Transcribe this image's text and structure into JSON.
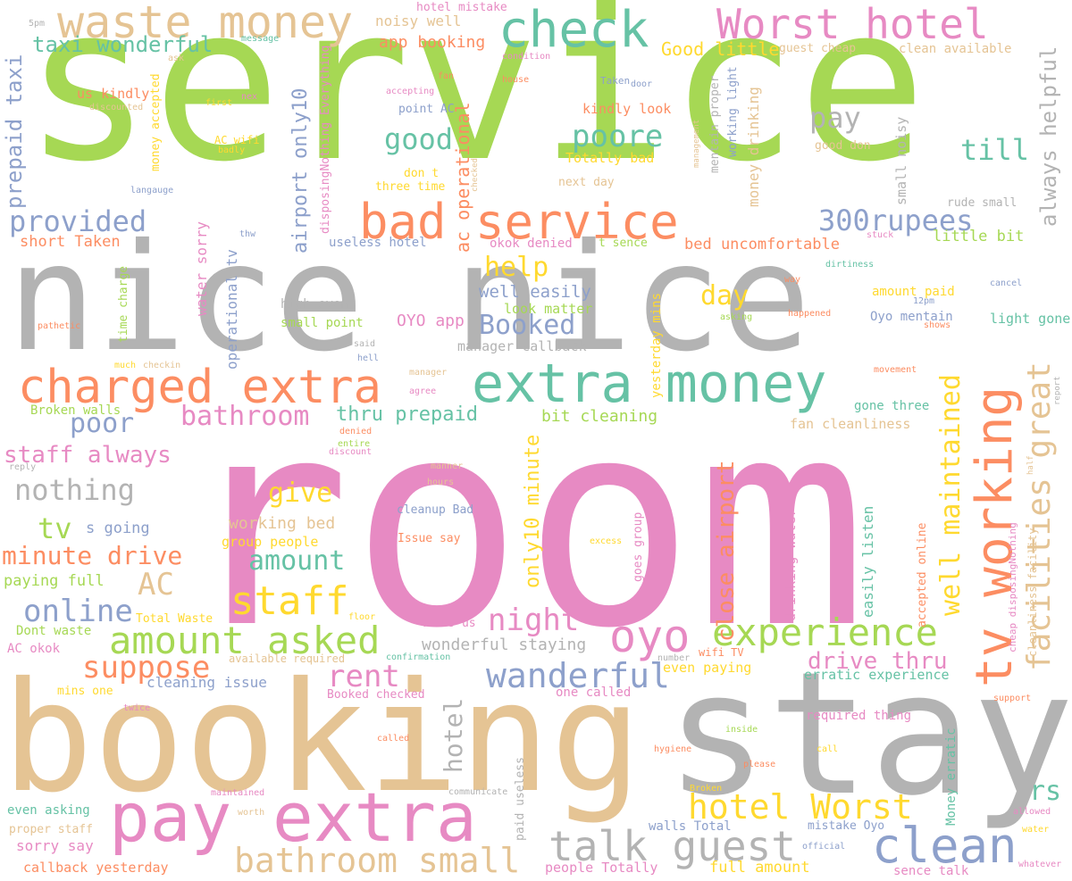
{
  "palette": {
    "green": "#a6d854",
    "gray": "#b3b3b3",
    "pink": "#e78ac3",
    "tan": "#e5c494",
    "teal": "#66c2a5",
    "orange": "#fc8d62",
    "blue": "#8da0cb",
    "yellow": "#ffd92f"
  },
  "words": [
    {
      "text": "service",
      "color": "#a6d854"
    },
    {
      "text": "nice nice",
      "color": "#b3b3b3"
    },
    {
      "text": "room",
      "color": "#e78ac3"
    },
    {
      "text": "booking",
      "color": "#e5c494"
    },
    {
      "text": "stay",
      "color": "#b3b3b3"
    },
    {
      "text": "waste money",
      "color": "#e5c494"
    },
    {
      "text": "check",
      "color": "#66c2a5"
    },
    {
      "text": "Worst hotel",
      "color": "#e78ac3"
    },
    {
      "text": "bad service",
      "color": "#fc8d62"
    },
    {
      "text": "charged extra",
      "color": "#fc8d62"
    },
    {
      "text": "extra money",
      "color": "#66c2a5"
    },
    {
      "text": "pay extra",
      "color": "#e78ac3"
    },
    {
      "text": "talk guest",
      "color": "#b3b3b3"
    },
    {
      "text": "clean",
      "color": "#8da0cb"
    },
    {
      "text": "bathroom small",
      "color": "#e5c494"
    },
    {
      "text": "amount asked",
      "color": "#a6d854"
    },
    {
      "text": "oyo",
      "color": "#e78ac3"
    },
    {
      "text": "experience",
      "color": "#a6d854"
    },
    {
      "text": "tv working",
      "color": "#fc8d62"
    },
    {
      "text": "facilities great",
      "color": "#e5c494"
    },
    {
      "text": "well maintained",
      "color": "#ffd92f"
    },
    {
      "text": "staff",
      "color": "#ffd92f"
    },
    {
      "text": "hotel Worst",
      "color": "#ffd92f"
    },
    {
      "text": "wanderful",
      "color": "#8da0cb"
    },
    {
      "text": "rent",
      "color": "#e78ac3"
    },
    {
      "text": "suppose",
      "color": "#fc8d62"
    },
    {
      "text": "online",
      "color": "#8da0cb"
    },
    {
      "text": "AC",
      "color": "#e5c494"
    },
    {
      "text": "night",
      "color": "#e78ac3"
    },
    {
      "text": "provided",
      "color": "#8da0cb"
    },
    {
      "text": "300rupees",
      "color": "#8da0cb"
    },
    {
      "text": "poore",
      "color": "#66c2a5"
    },
    {
      "text": "good",
      "color": "#66c2a5"
    },
    {
      "text": "pay",
      "color": "#b3b3b3"
    },
    {
      "text": "till",
      "color": "#66c2a5"
    },
    {
      "text": "help",
      "color": "#ffd92f"
    },
    {
      "text": "Booked",
      "color": "#8da0cb"
    },
    {
      "text": "day",
      "color": "#ffd92f"
    },
    {
      "text": "bathroom",
      "color": "#e78ac3"
    },
    {
      "text": "poor",
      "color": "#8da0cb"
    },
    {
      "text": "thru prepaid",
      "color": "#66c2a5"
    },
    {
      "text": "staff always",
      "color": "#e78ac3"
    },
    {
      "text": "nothing",
      "color": "#b3b3b3"
    },
    {
      "text": "give",
      "color": "#ffd92f"
    },
    {
      "text": "amount",
      "color": "#66c2a5"
    },
    {
      "text": "tv",
      "color": "#a6d854"
    },
    {
      "text": "minute drive",
      "color": "#fc8d62"
    },
    {
      "text": "drive thru",
      "color": "#e78ac3"
    },
    {
      "text": "rs",
      "color": "#66c2a5"
    },
    {
      "text": "always helpful",
      "color": "#b3b3b3"
    },
    {
      "text": "taxi wonderful",
      "color": "#66c2a5"
    },
    {
      "text": "prepaid taxi",
      "color": "#8da0cb"
    },
    {
      "text": "airport only10",
      "color": "#8da0cb"
    },
    {
      "text": "ac operational",
      "color": "#fc8d62"
    },
    {
      "text": "close airport",
      "color": "#fc8d62"
    },
    {
      "text": "only10 minute",
      "color": "#ffd92f"
    },
    {
      "text": "hotel",
      "color": "#b3b3b3"
    },
    {
      "text": "Good little",
      "color": "#ffd92f"
    },
    {
      "text": "app booking",
      "color": "#fc8d62"
    },
    {
      "text": "noisy well",
      "color": "#e5c494"
    },
    {
      "text": "hotel mistake",
      "color": "#e78ac3"
    },
    {
      "text": "kindly look",
      "color": "#fc8d62"
    },
    {
      "text": "Totally bad",
      "color": "#ffd92f"
    },
    {
      "text": "point AC",
      "color": "#8da0cb"
    },
    {
      "text": "don t",
      "color": "#ffd92f"
    },
    {
      "text": "three time",
      "color": "#ffd92f"
    },
    {
      "text": "next day",
      "color": "#e5c494"
    },
    {
      "text": "okok denied",
      "color": "#e78ac3"
    },
    {
      "text": "t sence",
      "color": "#a6d854"
    },
    {
      "text": "useless hotel",
      "color": "#8da0cb"
    },
    {
      "text": "bed uncomfortable",
      "color": "#fc8d62"
    },
    {
      "text": "little bit",
      "color": "#a6d854"
    },
    {
      "text": "rude small",
      "color": "#b3b3b3"
    },
    {
      "text": "short Taken",
      "color": "#fc8d62"
    },
    {
      "text": "us kindly",
      "color": "#fc8d62"
    },
    {
      "text": "AC wifi",
      "color": "#ffd92f"
    },
    {
      "text": "high even",
      "color": "#b3b3b3"
    },
    {
      "text": "small point",
      "color": "#a6d854"
    },
    {
      "text": "OYO app",
      "color": "#e78ac3"
    },
    {
      "text": "well easily",
      "color": "#8da0cb"
    },
    {
      "text": "look matter",
      "color": "#a6d854"
    },
    {
      "text": "manager callback",
      "color": "#b3b3b3"
    },
    {
      "text": "bit cleaning",
      "color": "#a6d854"
    },
    {
      "text": "amount paid",
      "color": "#ffd92f"
    },
    {
      "text": "Oyo mentain",
      "color": "#8da0cb"
    },
    {
      "text": "light gone",
      "color": "#66c2a5"
    },
    {
      "text": "gone three",
      "color": "#66c2a5"
    },
    {
      "text": "fan cleanliness",
      "color": "#e5c494"
    },
    {
      "text": "Broken walls",
      "color": "#a6d854"
    },
    {
      "text": "s going",
      "color": "#8da0cb"
    },
    {
      "text": "working bed",
      "color": "#e5c494"
    },
    {
      "text": "group people",
      "color": "#ffd92f"
    },
    {
      "text": "cleanup Bad",
      "color": "#8da0cb"
    },
    {
      "text": "Issue say",
      "color": "#fc8d62"
    },
    {
      "text": "paying full",
      "color": "#a6d854"
    },
    {
      "text": "Total Waste",
      "color": "#ffd92f"
    },
    {
      "text": "Dont waste",
      "color": "#a6d854"
    },
    {
      "text": "AC okok",
      "color": "#e78ac3"
    },
    {
      "text": "400rs us",
      "color": "#e78ac3"
    },
    {
      "text": "wonderful staying",
      "color": "#b3b3b3"
    },
    {
      "text": "available required",
      "color": "#e5c494"
    },
    {
      "text": "cleaning issue",
      "color": "#8da0cb"
    },
    {
      "text": "mins one",
      "color": "#ffd92f"
    },
    {
      "text": "Booked checked",
      "color": "#e78ac3"
    },
    {
      "text": "one called",
      "color": "#e78ac3"
    },
    {
      "text": "even paying",
      "color": "#ffd92f"
    },
    {
      "text": "wifi TV",
      "color": "#fc8d62"
    },
    {
      "text": "erratic experience",
      "color": "#66c2a5"
    },
    {
      "text": "required thing",
      "color": "#e78ac3"
    },
    {
      "text": "even asking",
      "color": "#66c2a5"
    },
    {
      "text": "proper staff",
      "color": "#e5c494"
    },
    {
      "text": "sorry say",
      "color": "#e78ac3"
    },
    {
      "text": "callback yesterday",
      "color": "#fc8d62"
    },
    {
      "text": "people Totally",
      "color": "#e78ac3"
    },
    {
      "text": "full amount",
      "color": "#ffd92f"
    },
    {
      "text": "walls Total",
      "color": "#8da0cb"
    },
    {
      "text": "mistake Oyo",
      "color": "#8da0cb"
    },
    {
      "text": "sence talk",
      "color": "#e78ac3"
    },
    {
      "text": "guest cheap",
      "color": "#e5c494"
    },
    {
      "text": "clean available",
      "color": "#e5c494"
    },
    {
      "text": "good don",
      "color": "#e5c494"
    },
    {
      "text": "Money erratic",
      "color": "#66c2a5"
    },
    {
      "text": "accepted online",
      "color": "#fc8d62"
    },
    {
      "text": "easily listen",
      "color": "#66c2a5"
    },
    {
      "text": "drinking water",
      "color": "#e78ac3"
    },
    {
      "text": "goes group",
      "color": "#e78ac3"
    },
    {
      "text": "paid useless",
      "color": "#b3b3b3"
    },
    {
      "text": "yesterday mins",
      "color": "#ffd92f"
    },
    {
      "text": "operational tv",
      "color": "#8da0cb"
    },
    {
      "text": "water sorry",
      "color": "#e78ac3"
    },
    {
      "text": "time charge",
      "color": "#a6d854"
    },
    {
      "text": "money accepted",
      "color": "#ffd92f"
    },
    {
      "text": "disposingNothing Everything",
      "color": "#e78ac3"
    },
    {
      "text": "money drinking",
      "color": "#e5c494"
    },
    {
      "text": "working light",
      "color": "#8da0cb"
    },
    {
      "text": "mentain proper",
      "color": "#b3b3b3"
    },
    {
      "text": "small noisy",
      "color": "#b3b3b3"
    },
    {
      "text": "cheap disposingNothing",
      "color": "#e78ac3"
    },
    {
      "text": "cleanliness facility",
      "color": "#e5c494"
    },
    {
      "text": "5pm",
      "color": "#b3b3b3"
    },
    {
      "text": "message",
      "color": "#66c2a5"
    },
    {
      "text": "ask",
      "color": "#e5c494"
    },
    {
      "text": "fan",
      "color": "#fc8d62"
    },
    {
      "text": "house",
      "color": "#fc8d62"
    },
    {
      "text": "condition",
      "color": "#e78ac3"
    },
    {
      "text": "Taken",
      "color": "#8da0cb"
    },
    {
      "text": "door",
      "color": "#8da0cb"
    },
    {
      "text": "nex",
      "color": "#e78ac3"
    },
    {
      "text": "first",
      "color": "#ffd92f"
    },
    {
      "text": "accepting",
      "color": "#e78ac3"
    },
    {
      "text": "discounted",
      "color": "#e5c494"
    },
    {
      "text": "badly",
      "color": "#ffd92f"
    },
    {
      "text": "washroom",
      "color": "#a6d854"
    },
    {
      "text": "langauge",
      "color": "#8da0cb"
    },
    {
      "text": "checked",
      "color": "#e5c494"
    },
    {
      "text": "management",
      "color": "#e5c494"
    },
    {
      "text": "thw",
      "color": "#8da0cb"
    },
    {
      "text": "stuck",
      "color": "#e78ac3"
    },
    {
      "text": "dirtiness",
      "color": "#66c2a5"
    },
    {
      "text": "way",
      "color": "#fc8d62"
    },
    {
      "text": "cancel",
      "color": "#8da0cb"
    },
    {
      "text": "12pm",
      "color": "#8da0cb"
    },
    {
      "text": "happened",
      "color": "#fc8d62"
    },
    {
      "text": "asking",
      "color": "#a6d854"
    },
    {
      "text": "shows",
      "color": "#fc8d62"
    },
    {
      "text": "pathetic",
      "color": "#fc8d62"
    },
    {
      "text": "said",
      "color": "#b3b3b3"
    },
    {
      "text": "hell",
      "color": "#8da0cb"
    },
    {
      "text": "much",
      "color": "#ffd92f"
    },
    {
      "text": "checkin",
      "color": "#e5c494"
    },
    {
      "text": "manager",
      "color": "#e5c494"
    },
    {
      "text": "agree",
      "color": "#e78ac3"
    },
    {
      "text": "movement",
      "color": "#fc8d62"
    },
    {
      "text": "report",
      "color": "#b3b3b3"
    },
    {
      "text": "denied",
      "color": "#fc8d62"
    },
    {
      "text": "entire",
      "color": "#a6d854"
    },
    {
      "text": "discount",
      "color": "#e78ac3"
    },
    {
      "text": "reply",
      "color": "#b3b3b3"
    },
    {
      "text": "manner",
      "color": "#e5c494"
    },
    {
      "text": "hours",
      "color": "#e5c494"
    },
    {
      "text": "half",
      "color": "#e5c494"
    },
    {
      "text": "excess",
      "color": "#ffd92f"
    },
    {
      "text": "floor",
      "color": "#ffd92f"
    },
    {
      "text": "confirmation",
      "color": "#66c2a5"
    },
    {
      "text": "number",
      "color": "#b3b3b3"
    },
    {
      "text": "support",
      "color": "#fc8d62"
    },
    {
      "text": "twice",
      "color": "#e78ac3"
    },
    {
      "text": "inside",
      "color": "#a6d854"
    },
    {
      "text": "called",
      "color": "#fc8d62"
    },
    {
      "text": "hygiene",
      "color": "#fc8d62"
    },
    {
      "text": "call",
      "color": "#ffd92f"
    },
    {
      "text": "please",
      "color": "#fc8d62"
    },
    {
      "text": "maintained",
      "color": "#e78ac3"
    },
    {
      "text": "communicate",
      "color": "#b3b3b3"
    },
    {
      "text": "Broken",
      "color": "#ffd92f"
    },
    {
      "text": "worth",
      "color": "#e5c494"
    },
    {
      "text": "allowed",
      "color": "#e78ac3"
    },
    {
      "text": "water",
      "color": "#ffd92f"
    },
    {
      "text": "official",
      "color": "#8da0cb"
    },
    {
      "text": "whatever",
      "color": "#e78ac3"
    }
  ]
}
